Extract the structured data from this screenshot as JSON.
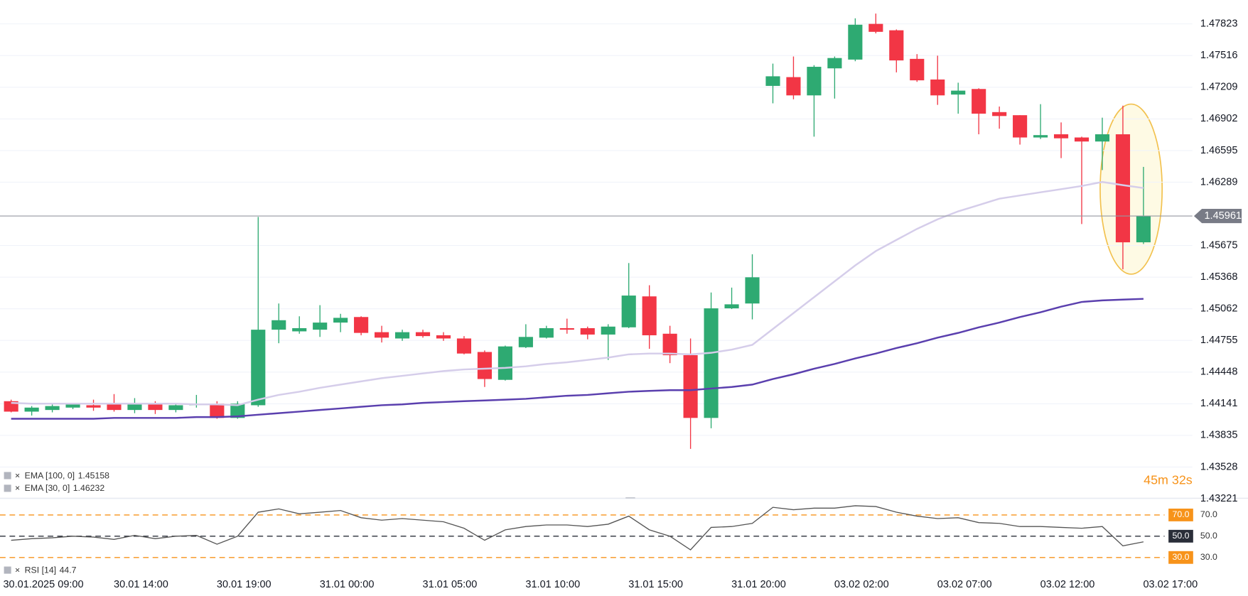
{
  "chart_data": [
    {
      "type": "candlestick",
      "categories": [
        null,
        "30.01.2025 09:00",
        null,
        null,
        null,
        null,
        "30.01 14:00",
        null,
        null,
        null,
        null,
        "30.01 19:00",
        null,
        null,
        null,
        null,
        "31.01 00:00",
        null,
        null,
        null,
        null,
        "31.01 05:00",
        null,
        null,
        null,
        null,
        "31.01 10:00",
        null,
        null,
        null,
        null,
        "31.01 15:00",
        null,
        null,
        null,
        null,
        "31.01 20:00",
        null,
        null,
        null,
        null,
        "03.02 02:00",
        null,
        null,
        null,
        null,
        "03.02 07:00",
        null,
        null,
        null,
        null,
        "03.02 12:00",
        null,
        null,
        null,
        null,
        "03.02 17:00"
      ],
      "open": [
        1.44166,
        1.44065,
        1.44081,
        1.44104,
        1.44127,
        1.44135,
        1.44081,
        1.4415,
        1.44081,
        1.44127,
        1.44142,
        1.44004,
        1.44127,
        1.44859,
        1.44843,
        1.44859,
        1.44928,
        1.44982,
        1.44835,
        1.44774,
        1.44835,
        1.44805,
        1.44774,
        1.44643,
        1.44373,
        1.44689,
        1.44782,
        1.44874,
        1.44874,
        1.44812,
        1.44882,
        1.45182,
        1.4482,
        1.44612,
        1.44004,
        1.45066,
        1.45113,
        1.47222,
        1.47307,
        1.4713,
        1.47392,
        1.47477,
        1.47823,
        1.47761,
        1.47484,
        1.47284,
        1.47138,
        1.47192,
        1.46968,
        1.46938,
        1.46722,
        1.46753,
        1.46722,
        1.46683,
        1.46753,
        1.45706,
        null
      ],
      "high": [
        1.44181,
        1.44119,
        1.44135,
        1.4415,
        1.44181,
        1.44235,
        1.44196,
        1.44166,
        1.4415,
        1.44227,
        1.44166,
        1.44166,
        1.45952,
        1.45113,
        1.44989,
        1.45097,
        1.45013,
        1.44989,
        1.44897,
        1.44859,
        1.44859,
        1.44835,
        1.44797,
        1.44658,
        1.44705,
        1.44912,
        1.44897,
        1.44966,
        1.44889,
        1.44912,
        1.45505,
        1.4529,
        1.44897,
        1.44774,
        1.4522,
        1.45267,
        1.4559,
        1.47438,
        1.47507,
        1.47423,
        1.47507,
        1.47877,
        1.47923,
        1.47769,
        1.4753,
        1.47515,
        1.47253,
        1.47199,
        1.47022,
        1.46938,
        1.47045,
        1.46868,
        1.4673,
        1.46914,
        1.4703,
        1.46437,
        null
      ],
      "low": [
        1.44058,
        1.44027,
        1.44058,
        1.44089,
        1.44073,
        1.44065,
        1.4405,
        1.44042,
        1.44058,
        1.44104,
        1.43996,
        1.43996,
        1.44112,
        1.44728,
        1.4482,
        1.44789,
        1.44835,
        1.44805,
        1.44735,
        1.44751,
        1.44782,
        1.44751,
        1.4462,
        1.44304,
        1.44366,
        1.44681,
        1.44774,
        1.4482,
        1.44766,
        1.44566,
        1.44874,
        1.44674,
        1.44535,
        1.43704,
        1.43904,
        1.45059,
        1.44959,
        1.47053,
        1.47092,
        1.4673,
        1.47099,
        1.47461,
        1.47731,
        1.47353,
        1.47261,
        1.47038,
        1.46953,
        1.46753,
        1.46807,
        1.46653,
        1.46707,
        1.46522,
        1.45883,
        1.46406,
        1.45444,
        1.4569,
        null
      ],
      "close": [
        1.44065,
        1.44104,
        1.44119,
        1.44135,
        1.44104,
        1.44081,
        1.44135,
        1.44081,
        1.44127,
        1.44135,
        1.44004,
        1.44142,
        1.44859,
        1.44951,
        1.44874,
        1.44928,
        1.44974,
        1.44828,
        1.44782,
        1.44835,
        1.44797,
        1.44774,
        1.44628,
        1.44381,
        1.44697,
        1.44789,
        1.44874,
        1.44859,
        1.44812,
        1.44889,
        1.4519,
        1.44805,
        1.44612,
        1.44004,
        1.45066,
        1.45105,
        1.45367,
        1.47315,
        1.4713,
        1.47407,
        1.47492,
        1.47815,
        1.47746,
        1.47469,
        1.47276,
        1.4713,
        1.47176,
        1.46953,
        1.4693,
        1.46722,
        1.46745,
        1.46714,
        1.46683,
        1.46753,
        1.45706,
        1.45961,
        null
      ],
      "up_color": "#2eaa72",
      "down_color": "#f23645",
      "series": [
        {
          "name": "EMA [100, 0]",
          "value": 1.45158,
          "color": "#5a3fae",
          "values": [
            1.43996,
            1.43996,
            1.43996,
            1.43996,
            1.43996,
            1.44004,
            1.44004,
            1.44004,
            1.44004,
            1.44012,
            1.44012,
            1.44019,
            1.44035,
            1.4405,
            1.44065,
            1.44081,
            1.44096,
            1.44112,
            1.44127,
            1.44135,
            1.4415,
            1.44158,
            1.44166,
            1.44173,
            1.44181,
            1.44189,
            1.44204,
            1.44219,
            1.44227,
            1.44243,
            1.44258,
            1.44266,
            1.44273,
            1.44273,
            1.44289,
            1.44304,
            1.44327,
            1.44381,
            1.44427,
            1.44481,
            1.44527,
            1.44581,
            1.44628,
            1.44681,
            1.44728,
            1.44782,
            1.44828,
            1.44882,
            1.44928,
            1.44982,
            1.45028,
            1.45082,
            1.45128,
            1.45143,
            1.45151,
            1.45158,
            null
          ]
        },
        {
          "name": "EMA [30, 0]",
          "value": 1.46232,
          "color": "#d5cdea",
          "values": [
            1.4415,
            1.44142,
            1.44142,
            1.44142,
            1.44142,
            1.44142,
            1.44142,
            1.44142,
            1.44142,
            1.44135,
            1.44135,
            1.44127,
            1.44181,
            1.44227,
            1.44258,
            1.44296,
            1.44327,
            1.44358,
            1.44389,
            1.44412,
            1.44435,
            1.44458,
            1.44474,
            1.44481,
            1.44489,
            1.44504,
            1.44527,
            1.44543,
            1.44566,
            1.44589,
            1.4462,
            1.44628,
            1.44628,
            1.4462,
            1.44635,
            1.44666,
            1.44712,
            1.44866,
            1.4502,
            1.45174,
            1.45328,
            1.45482,
            1.45621,
            1.45729,
            1.45836,
            1.45929,
            1.46006,
            1.46067,
            1.46129,
            1.4616,
            1.46191,
            1.46221,
            1.46252,
            1.46291,
            1.4626,
            1.46232,
            null
          ]
        }
      ],
      "ylim": [
        1.43218,
        1.48054
      ],
      "yticks": [
        1.47823,
        1.47516,
        1.47209,
        1.46902,
        1.46595,
        1.46289,
        1.45675,
        1.45368,
        1.45062,
        1.44755,
        1.44448,
        1.44141,
        1.43835,
        1.43528,
        1.43221
      ],
      "grid": true,
      "last_price": 1.45961,
      "countdown": "45m 32s"
    },
    {
      "type": "line",
      "series": [
        {
          "name": "RSI [14]",
          "value": 44.7,
          "color": "#555555",
          "values": [
            46.2,
            47.7,
            48.5,
            50.0,
            49.2,
            47.0,
            50.8,
            47.7,
            50.0,
            50.8,
            42.5,
            50.0,
            72.6,
            75.7,
            71.1,
            72.6,
            74.2,
            67.4,
            65.1,
            66.6,
            65.1,
            63.6,
            57.5,
            46.2,
            56.0,
            59.1,
            60.6,
            60.6,
            59.1,
            61.3,
            68.9,
            56.0,
            50.0,
            37.2,
            58.3,
            59.1,
            62.1,
            77.2,
            74.9,
            76.4,
            76.4,
            78.7,
            77.9,
            72.6,
            68.9,
            66.6,
            67.4,
            62.8,
            62.1,
            59.1,
            59.1,
            58.3,
            57.5,
            59.1,
            40.9,
            44.7,
            null
          ]
        }
      ],
      "ylim": [
        11,
        85
      ],
      "yticks": [
        {
          "value": 70,
          "label": "70.0"
        },
        {
          "value": 50,
          "label": "50.0"
        },
        {
          "value": 30,
          "label": "30.0"
        }
      ],
      "level_colors": [
        "#f7931a",
        "#2a2e39",
        "#f7931a"
      ]
    }
  ]
}
